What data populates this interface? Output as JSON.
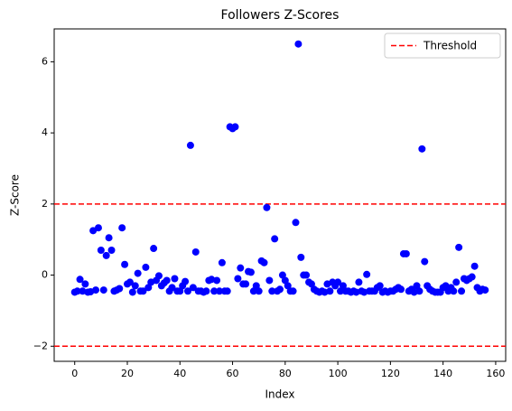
{
  "chart_data": {
    "type": "scatter",
    "title": "Followers Z-Scores",
    "x_label": "Index",
    "y_label": "Z-Score",
    "x": [
      0,
      1,
      2,
      3,
      4,
      5,
      6,
      7,
      8,
      9,
      10,
      11,
      12,
      13,
      14,
      15,
      16,
      17,
      18,
      19,
      20,
      21,
      22,
      23,
      24,
      25,
      26,
      27,
      28,
      29,
      30,
      31,
      32,
      33,
      34,
      35,
      36,
      37,
      38,
      39,
      40,
      41,
      42,
      43,
      44,
      45,
      46,
      47,
      48,
      49,
      50,
      51,
      52,
      53,
      54,
      55,
      56,
      57,
      58,
      59,
      60,
      61,
      62,
      63,
      64,
      65,
      66,
      67,
      68,
      69,
      70,
      71,
      72,
      73,
      74,
      75,
      76,
      77,
      78,
      79,
      80,
      81,
      82,
      83,
      84,
      85,
      86,
      87,
      88,
      89,
      90,
      91,
      92,
      93,
      94,
      95,
      96,
      97,
      98,
      99,
      100,
      101,
      102,
      103,
      104,
      105,
      106,
      107,
      108,
      109,
      110,
      111,
      112,
      113,
      114,
      115,
      116,
      117,
      118,
      119,
      120,
      121,
      122,
      123,
      124,
      125,
      126,
      127,
      128,
      129,
      130,
      131,
      132,
      133,
      134,
      135,
      136,
      137,
      138,
      139,
      140,
      141,
      142,
      143,
      144,
      145,
      146,
      147,
      148,
      149,
      150,
      151,
      152,
      153,
      154,
      155,
      156
    ],
    "values": [
      -0.48,
      -0.45,
      -0.12,
      -0.45,
      -0.25,
      -0.48,
      -0.47,
      1.25,
      -0.42,
      1.33,
      0.7,
      -0.42,
      0.55,
      1.05,
      0.7,
      -0.45,
      -0.42,
      -0.38,
      1.33,
      0.3,
      -0.25,
      -0.2,
      -0.48,
      -0.3,
      0.05,
      -0.45,
      -0.45,
      0.22,
      -0.35,
      -0.2,
      0.75,
      -0.15,
      -0.02,
      -0.3,
      -0.22,
      -0.15,
      -0.45,
      -0.35,
      -0.1,
      -0.45,
      -0.45,
      -0.3,
      -0.18,
      -0.45,
      3.65,
      -0.35,
      0.65,
      -0.45,
      -0.45,
      -0.48,
      -0.45,
      -0.15,
      -0.12,
      -0.45,
      -0.15,
      -0.45,
      0.35,
      -0.45,
      -0.45,
      4.17,
      4.12,
      4.17,
      -0.1,
      0.2,
      -0.25,
      -0.25,
      0.1,
      0.08,
      -0.45,
      -0.3,
      -0.45,
      0.4,
      0.35,
      1.9,
      -0.15,
      -0.45,
      1.02,
      -0.45,
      -0.4,
      0.0,
      -0.15,
      -0.3,
      -0.45,
      -0.45,
      1.48,
      6.5,
      0.5,
      0.0,
      0.0,
      -0.2,
      -0.25,
      -0.4,
      -0.45,
      -0.48,
      -0.45,
      -0.48,
      -0.25,
      -0.45,
      -0.2,
      -0.3,
      -0.2,
      -0.45,
      -0.3,
      -0.45,
      -0.45,
      -0.48,
      -0.45,
      -0.48,
      -0.2,
      -0.45,
      -0.48,
      0.02,
      -0.45,
      -0.45,
      -0.45,
      -0.35,
      -0.3,
      -0.48,
      -0.45,
      -0.48,
      -0.45,
      -0.45,
      -0.4,
      -0.35,
      -0.4,
      0.6,
      0.6,
      -0.45,
      -0.4,
      -0.48,
      -0.3,
      -0.45,
      3.55,
      0.38,
      -0.3,
      -0.4,
      -0.45,
      -0.48,
      -0.48,
      -0.48,
      -0.35,
      -0.3,
      -0.45,
      -0.35,
      -0.45,
      -0.2,
      0.78,
      -0.45,
      -0.1,
      -0.15,
      -0.1,
      -0.05,
      0.25,
      -0.35,
      -0.45,
      -0.4,
      -0.42
    ],
    "color": "#0000ff",
    "threshold": {
      "name": "Threshold",
      "color": "#ff0000",
      "values": [
        2,
        -2
      ]
    },
    "xlim": [
      -7.8,
      163.8
    ],
    "xticks": [
      0,
      20,
      40,
      60,
      80,
      100,
      120,
      140,
      160
    ],
    "ylim": [
      -2.425,
      6.925
    ],
    "yticks": [
      {
        "value": -2,
        "label": "−2"
      },
      0,
      2,
      4,
      6
    ],
    "legend": "upper right",
    "grid": false
  }
}
